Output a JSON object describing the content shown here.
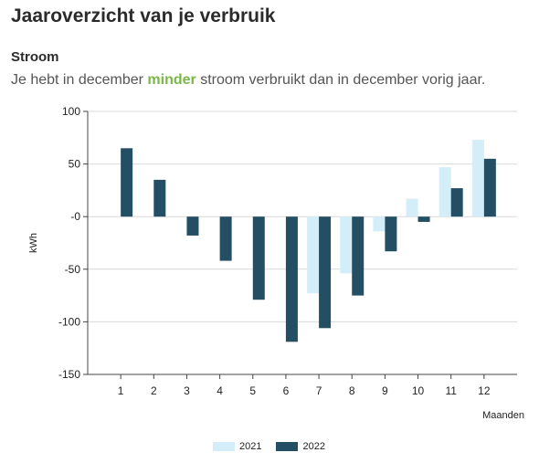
{
  "header": {
    "title": "Jaaroverzicht van je verbruik"
  },
  "section": {
    "title": "Stroom",
    "summary_before": "Je hebt in december ",
    "summary_highlight": "minder",
    "summary_after": " stroom verbruikt dan in december vorig jaar."
  },
  "colors": {
    "highlight": "#7ab648",
    "series_2021": "#d4eef9",
    "series_2022": "#234e63"
  },
  "chart_data": {
    "type": "bar",
    "ylabel": "kWh",
    "xlabel": "Maanden",
    "categories": [
      "1",
      "2",
      "3",
      "4",
      "5",
      "6",
      "7",
      "8",
      "9",
      "10",
      "11",
      "12"
    ],
    "ylim": [
      -150,
      100
    ],
    "yticks": [
      100,
      50,
      0,
      -50,
      -100,
      -150
    ],
    "ytick_labels": [
      "100",
      "50",
      "-0",
      "-50",
      "-100",
      "-150"
    ],
    "grid": true,
    "legend_position": "bottom-center",
    "series": [
      {
        "name": "2021",
        "color": "#d4eef9",
        "values": [
          null,
          null,
          null,
          null,
          null,
          null,
          -73,
          -54,
          -14,
          17,
          47,
          73
        ]
      },
      {
        "name": "2022",
        "color": "#234e63",
        "values": [
          65,
          35,
          -18,
          -42,
          -79,
          -119,
          -106,
          -75,
          -33,
          -5,
          27,
          55
        ]
      }
    ]
  }
}
